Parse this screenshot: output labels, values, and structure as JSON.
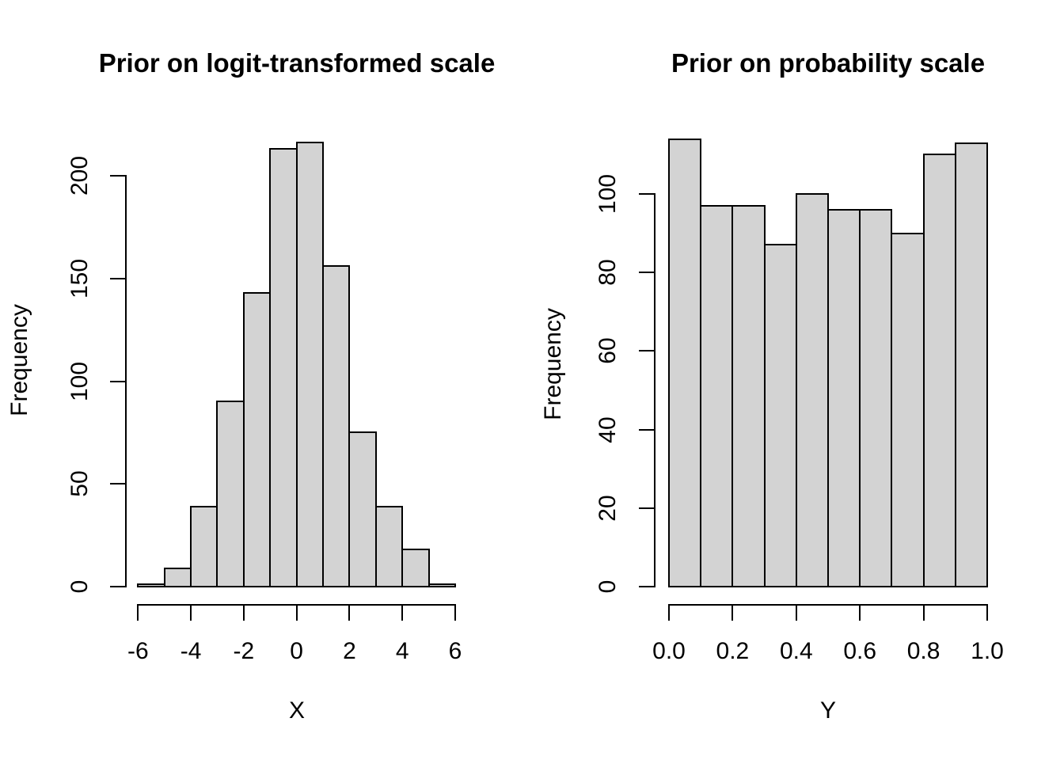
{
  "figure": {
    "background": "#ffffff",
    "bar_fill": "#d3d3d3",
    "bar_stroke": "#000000",
    "text_color": "#000000"
  },
  "chart_data": [
    {
      "type": "bar",
      "subtype": "histogram",
      "panel": "left",
      "title": "Prior on logit-transformed scale",
      "xlabel": "X",
      "ylabel": "Frequency",
      "bin_width": 1,
      "bin_edges": [
        -6,
        -5,
        -4,
        -3,
        -2,
        -1,
        0,
        1,
        2,
        3,
        4,
        5,
        6
      ],
      "values": [
        1,
        9,
        39,
        90,
        143,
        213,
        216,
        156,
        75,
        39,
        18,
        1
      ],
      "total_count": 1000,
      "xlim": [
        -6,
        6
      ],
      "ylim": [
        0,
        200
      ],
      "x_ticks": [
        "-6",
        "-4",
        "-2",
        "0",
        "2",
        "4",
        "6"
      ],
      "x_tick_values": [
        -6,
        -4,
        -2,
        0,
        2,
        4,
        6
      ],
      "y_ticks": [
        "0",
        "50",
        "100",
        "150",
        "200"
      ],
      "y_tick_values": [
        0,
        50,
        100,
        150,
        200
      ],
      "grid": "off",
      "legend": "none"
    },
    {
      "type": "bar",
      "subtype": "histogram",
      "panel": "right",
      "title": "Prior on probability scale",
      "xlabel": "Y",
      "ylabel": "Frequency",
      "bin_width": 0.1,
      "bin_edges": [
        0,
        0.1,
        0.2,
        0.3,
        0.4,
        0.5,
        0.6,
        0.7,
        0.8,
        0.9,
        1.0
      ],
      "values": [
        114,
        97,
        97,
        87,
        100,
        96,
        96,
        90,
        110,
        113
      ],
      "total_count": 1000,
      "xlim": [
        0,
        1
      ],
      "ylim": [
        0,
        100
      ],
      "x_ticks": [
        "0.0",
        "0.2",
        "0.4",
        "0.6",
        "0.8",
        "1.0"
      ],
      "x_tick_values": [
        0,
        0.2,
        0.4,
        0.6,
        0.8,
        1.0
      ],
      "y_ticks": [
        "0",
        "20",
        "40",
        "60",
        "80",
        "100"
      ],
      "y_tick_values": [
        0,
        20,
        40,
        60,
        80,
        100
      ],
      "grid": "off",
      "legend": "none"
    }
  ]
}
